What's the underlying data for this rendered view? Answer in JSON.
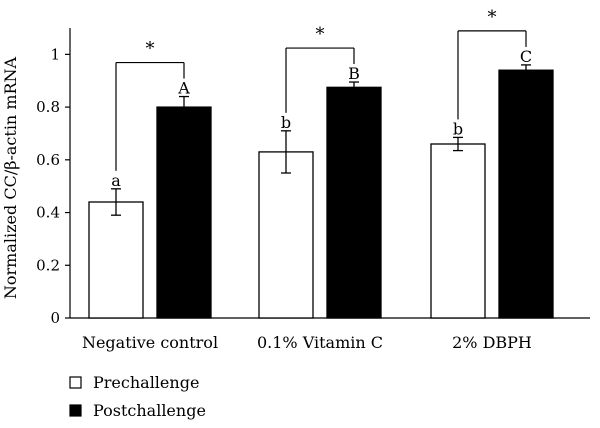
{
  "chart_data": {
    "type": "bar",
    "title": "",
    "xlabel": "",
    "ylabel": "Normalized CC/β-actin mRNA",
    "ylim": [
      0,
      1.1
    ],
    "yticks": [
      "0",
      "0.2",
      "0.4",
      "0.6",
      "0.8",
      "1"
    ],
    "categories": [
      "Negative control",
      "0.1% Vitamin C",
      "2% DBPH"
    ],
    "series": [
      {
        "name": "Prechallenge",
        "color": "#ffffff",
        "values": [
          0.44,
          0.63,
          0.66
        ],
        "errors": [
          0.05,
          0.08,
          0.025
        ],
        "letters": [
          "a",
          "b",
          "b"
        ]
      },
      {
        "name": "Postchallenge",
        "color": "#000000",
        "values": [
          0.8,
          0.875,
          0.94
        ],
        "errors": [
          0.04,
          0.02,
          0.02
        ],
        "letters": [
          "A",
          "B",
          "C"
        ]
      }
    ],
    "significance": [
      "*",
      "*",
      "*"
    ],
    "grid": false,
    "legend_position": "bottom-left"
  }
}
